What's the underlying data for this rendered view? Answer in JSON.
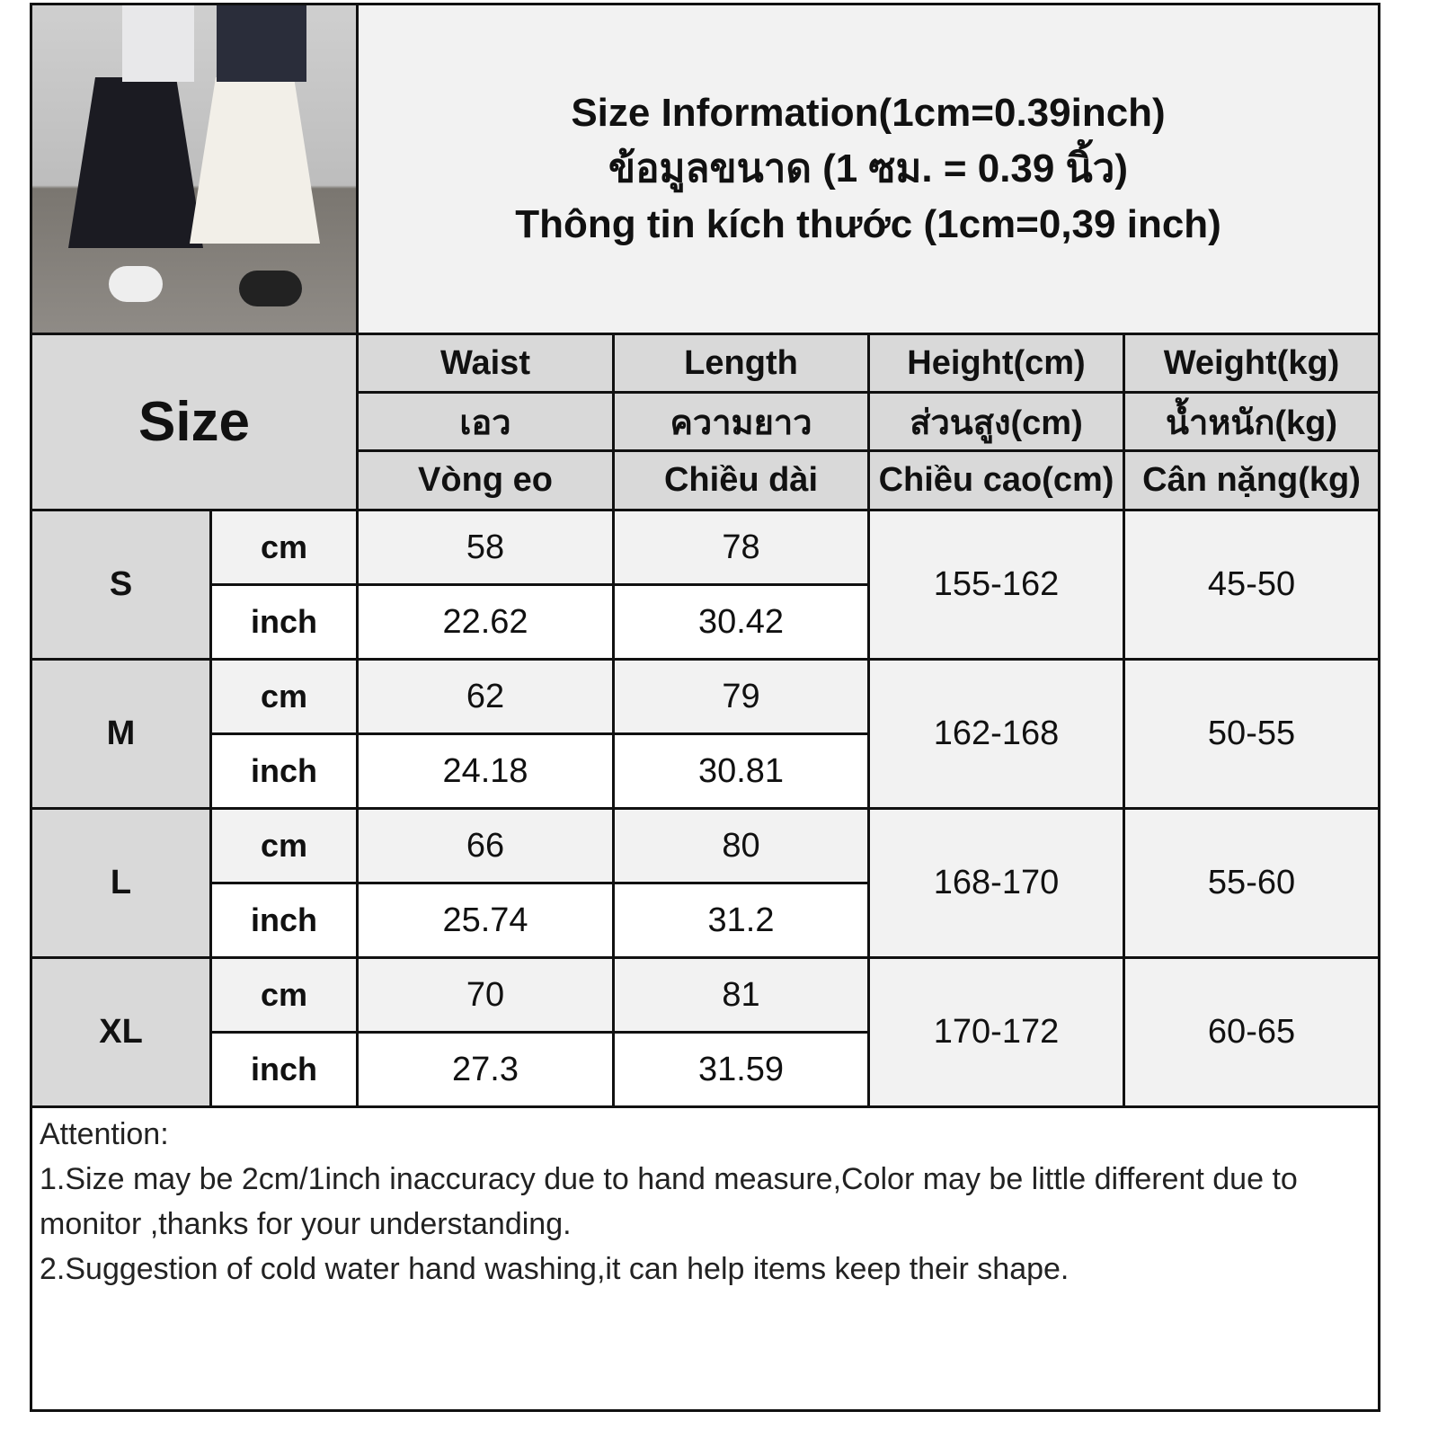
{
  "title": {
    "line1": "Size Information(1cm=0.39inch)",
    "line2": "ข้อมูลขนาด (1 ซม. = 0.39 นิ้ว)",
    "line3": "Thông tin kích thước (1cm=0,39 inch)"
  },
  "header": {
    "size": "Size",
    "columns": [
      {
        "en": "Waist",
        "th": "เอว",
        "vi": "Vòng eo"
      },
      {
        "en": "Length",
        "th": "ความยาว",
        "vi": "Chiều dài"
      },
      {
        "en": "Height(cm)",
        "th": "ส่วนสูง(cm)",
        "vi": "Chiều cao(cm)"
      },
      {
        "en": "Weight(kg)",
        "th": "น้ำหนัก(kg)",
        "vi": "Cân nặng(kg)"
      }
    ]
  },
  "units": {
    "cm": "cm",
    "inch": "inch"
  },
  "rows": [
    {
      "size": "S",
      "cm": {
        "waist": "58",
        "length": "78"
      },
      "inch": {
        "waist": "22.62",
        "length": "30.42"
      },
      "height": "155-162",
      "weight": "45-50"
    },
    {
      "size": "M",
      "cm": {
        "waist": "62",
        "length": "79"
      },
      "inch": {
        "waist": "24.18",
        "length": "30.81"
      },
      "height": "162-168",
      "weight": "50-55"
    },
    {
      "size": "L",
      "cm": {
        "waist": "66",
        "length": "80"
      },
      "inch": {
        "waist": "25.74",
        "length": "31.2"
      },
      "height": "168-170",
      "weight": "55-60"
    },
    {
      "size": "XL",
      "cm": {
        "waist": "70",
        "length": "81"
      },
      "inch": {
        "waist": "27.3",
        "length": "31.59"
      },
      "height": "170-172",
      "weight": "60-65"
    }
  ],
  "notes": {
    "heading": "Attention:",
    "items": [
      "1.Size may be 2cm/1inch inaccuracy due to hand measure,Color may be little different due to monitor ,thanks for your understanding.",
      "2.Suggestion of cold water hand washing,it can help items keep their shape."
    ]
  }
}
